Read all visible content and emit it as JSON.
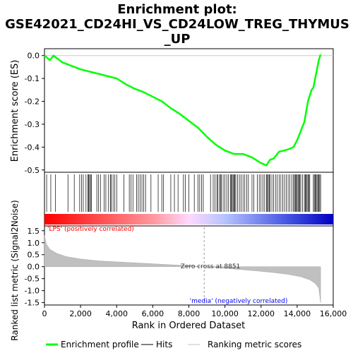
{
  "chart_data": {
    "type": "line",
    "title_lines": [
      "Enrichment plot:",
      "GSE42021_CD24HI_VS_CD24LOW_TREG_THYMUS",
      "_UP"
    ],
    "top_panel": {
      "ylabel": "Enrichment score (ES)",
      "ylim": [
        -0.51,
        0.03
      ],
      "yticks": [
        0.0,
        -0.1,
        -0.2,
        -0.3,
        -0.4,
        -0.5
      ],
      "ytick_labels": [
        "0.0",
        "-0.1",
        "-0.2",
        "-0.3",
        "-0.4",
        "-0.5"
      ],
      "series": [
        {
          "name": "Enrichment profile",
          "color": "#00ff00",
          "x": [
            0,
            300,
            500,
            1000,
            1500,
            2000,
            2500,
            3000,
            3500,
            4000,
            4500,
            5000,
            5500,
            6000,
            6500,
            7000,
            7500,
            8000,
            8500,
            9000,
            9500,
            10000,
            10500,
            11000,
            11500,
            12000,
            12300,
            12500,
            12700,
            13000,
            13300,
            13500,
            13800,
            14000,
            14200,
            14400,
            14600,
            14800,
            14900,
            15000,
            15100,
            15200,
            15300
          ],
          "y": [
            0.0,
            -0.02,
            0.0,
            -0.03,
            -0.045,
            -0.06,
            -0.07,
            -0.08,
            -0.09,
            -0.1,
            -0.125,
            -0.145,
            -0.16,
            -0.18,
            -0.2,
            -0.23,
            -0.255,
            -0.285,
            -0.315,
            -0.355,
            -0.39,
            -0.415,
            -0.43,
            -0.43,
            -0.445,
            -0.47,
            -0.48,
            -0.455,
            -0.45,
            -0.42,
            -0.415,
            -0.41,
            -0.4,
            -0.37,
            -0.33,
            -0.29,
            -0.2,
            -0.15,
            -0.14,
            -0.1,
            -0.06,
            -0.02,
            0.005
          ]
        }
      ]
    },
    "hits_panel": {
      "legend_name": "Hits",
      "positions": [
        120,
        350,
        600,
        1300,
        1650,
        1950,
        2050,
        2150,
        2300,
        2400,
        2450,
        2500,
        2550,
        2600,
        2900,
        3000,
        3100,
        3300,
        3400,
        3550,
        3650,
        3700,
        3800,
        3900,
        4000,
        4400,
        4700,
        4800,
        4900,
        5100,
        5200,
        5300,
        5400,
        5500,
        5600,
        5900,
        6300,
        6500,
        6600,
        7000,
        7200,
        7400,
        7700,
        7800,
        8000,
        8300,
        8500,
        8600,
        8700,
        8800,
        9200,
        9350,
        9450,
        9550,
        9600,
        9700,
        9750,
        9800,
        9900,
        10000,
        10100,
        10200,
        10300,
        10350,
        10400,
        10450,
        10500,
        10550,
        10600,
        10700,
        10800,
        10900,
        11000,
        11100,
        11200,
        11300,
        11500,
        11600,
        11800,
        11900,
        12000,
        12100,
        12200,
        12300,
        12350,
        12400,
        12450,
        12500,
        12600,
        12700,
        12800,
        12900,
        13000,
        13100,
        13200,
        13300,
        13400,
        13500,
        13600,
        13700,
        13800,
        13850,
        13900,
        13950,
        14000,
        14050,
        14100,
        14150,
        14200,
        14300,
        14400,
        14450,
        14500,
        14550,
        14600,
        14650,
        14700,
        14900,
        14950,
        15000,
        15050,
        15100,
        15150,
        15200,
        15250,
        15300
      ]
    },
    "metric_panel": {
      "ylabel": "Ranked list metric (Signal2Noise)",
      "xlabel": "Rank in Ordered Dataset",
      "legend_name": "Ranking metric scores",
      "ylim": [
        -1.6,
        1.7
      ],
      "yticks": [
        1.5,
        1.0,
        0.5,
        0.0,
        -0.5,
        -1.0,
        -1.5
      ],
      "ytick_labels": [
        "1.5",
        "1.0",
        "0.5",
        "0.0",
        "-0.5",
        "-1.0",
        "-1.5"
      ],
      "xlim": [
        0,
        16000
      ],
      "xticks": [
        0,
        2000,
        4000,
        6000,
        8000,
        10000,
        12000,
        14000,
        16000
      ],
      "xtick_labels": [
        "0",
        "2,000",
        "4,000",
        "6,000",
        "8,000",
        "10,000",
        "12,000",
        "14,000",
        "16,000"
      ],
      "metric_x": [
        0,
        100,
        300,
        700,
        1200,
        2000,
        3000,
        4500,
        6000,
        7500,
        8851,
        10000,
        11500,
        12500,
        13500,
        14200,
        14700,
        15000,
        15200,
        15300
      ],
      "metric_y": [
        1.3,
        0.95,
        0.72,
        0.55,
        0.42,
        0.32,
        0.24,
        0.18,
        0.12,
        0.06,
        0.0,
        -0.07,
        -0.16,
        -0.23,
        -0.32,
        -0.42,
        -0.55,
        -0.7,
        -0.9,
        -1.5
      ],
      "zero_cross_rank": 8851,
      "zero_cross_label": "Zero cross at 8851",
      "positive_label": "'LPS' (positively correlated)",
      "negative_label": "'media' (negatively correlated)",
      "positive_color": "#ff0000",
      "negative_color": "#0000ff"
    },
    "legend": {
      "items": [
        "Enrichment profile",
        "Hits",
        "Ranking metric scores"
      ]
    }
  }
}
